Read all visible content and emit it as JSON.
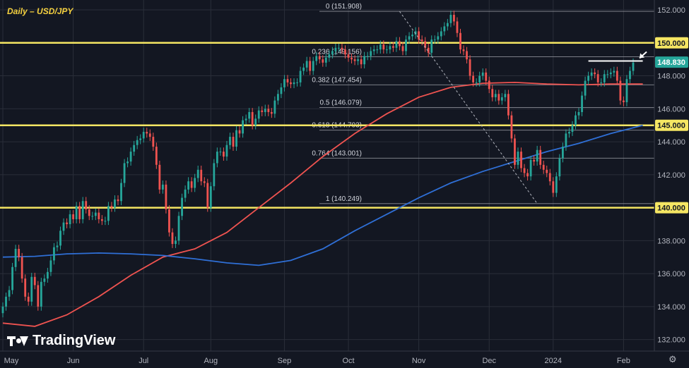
{
  "title": "Daily – USD/JPY",
  "brand": {
    "name": "TradingView",
    "icon": "tradingview-logo-icon"
  },
  "settings_icon": "gear-icon",
  "chart_data": {
    "type": "candlestick",
    "symbol": "USD/JPY",
    "timeframe": "Daily",
    "ylim": [
      131.3,
      152.6
    ],
    "y_axis": {
      "ticks": [
        {
          "value": 132,
          "label": "132.000"
        },
        {
          "value": 134,
          "label": "134.000"
        },
        {
          "value": 136,
          "label": "136.000"
        },
        {
          "value": 138,
          "label": "138.000"
        },
        {
          "value": 140,
          "label": "140.000"
        },
        {
          "value": 142,
          "label": "142.000"
        },
        {
          "value": 144,
          "label": "144.000"
        },
        {
          "value": 146,
          "label": "146.000"
        },
        {
          "value": 148,
          "label": "148.000"
        },
        {
          "value": 150,
          "label": "150.000"
        },
        {
          "value": 152,
          "label": "152.000"
        }
      ],
      "badges": [
        {
          "value": 150.0,
          "label": "150.000",
          "bg": "#f5e663",
          "fg": "#131722"
        },
        {
          "value": 148.83,
          "label": "148.830",
          "bg": "#26a69a",
          "fg": "#ffffff"
        },
        {
          "value": 145.0,
          "label": "145.000",
          "bg": "#f5e663",
          "fg": "#131722"
        },
        {
          "value": 140.0,
          "label": "140.000",
          "bg": "#f5e663",
          "fg": "#131722"
        }
      ]
    },
    "x_axis": {
      "ticks": [
        {
          "index": 0,
          "label": "May"
        },
        {
          "index": 22,
          "label": "Jun"
        },
        {
          "index": 44,
          "label": "Jul"
        },
        {
          "index": 65,
          "label": "Aug"
        },
        {
          "index": 88,
          "label": "Sep"
        },
        {
          "index": 108,
          "label": "Oct"
        },
        {
          "index": 130,
          "label": "Nov"
        },
        {
          "index": 152,
          "label": "Dec"
        },
        {
          "index": 172,
          "label": "2024"
        },
        {
          "index": 194,
          "label": "Feb"
        }
      ]
    },
    "horizontal_levels": [
      150.0,
      145.0,
      140.0
    ],
    "fibonacci": [
      {
        "ratio": "0",
        "value": 151.908,
        "label": "0 (151.908)"
      },
      {
        "ratio": "0.236",
        "value": 149.156,
        "label": "0.236 (149.156)"
      },
      {
        "ratio": "0.382",
        "value": 147.454,
        "label": "0.382 (147.454)"
      },
      {
        "ratio": "0.5",
        "value": 146.079,
        "label": "0.5 (146.079)"
      },
      {
        "ratio": "0.618",
        "value": 144.703,
        "label": "0.618 (144.703)"
      },
      {
        "ratio": "0.764",
        "value": 143.001,
        "label": "0.764 (143.001)"
      },
      {
        "ratio": "1",
        "value": 140.249,
        "label": "1 (140.249)"
      }
    ],
    "resistance_line": {
      "value": 148.9,
      "from_index": 183,
      "to_index": 200
    },
    "closes": [
      134.0,
      134.6,
      135.0,
      136.4,
      137.5,
      137.0,
      135.7,
      134.6,
      134.3,
      135.8,
      135.3,
      134.0,
      135.5,
      135.7,
      136.1,
      136.8,
      137.6,
      137.7,
      138.6,
      139.1,
      139.0,
      139.6,
      139.3,
      140.1,
      139.3,
      140.4,
      139.9,
      139.5,
      139.5,
      139.7,
      139.3,
      139.2,
      139.2,
      140.1,
      140.0,
      140.5,
      140.4,
      141.5,
      142.7,
      142.8,
      143.4,
      143.8,
      144.1,
      144.2,
      144.6,
      144.5,
      144.3,
      143.7,
      142.6,
      141.1,
      141.4,
      139.9,
      138.5,
      137.8,
      138.0,
      139.5,
      140.6,
      141.1,
      141.6,
      141.2,
      141.8,
      142.3,
      141.6,
      141.5,
      140.0,
      141.3,
      142.7,
      143.4,
      143.4,
      143.1,
      143.8,
      144.3,
      143.7,
      144.7,
      144.5,
      145.3,
      145.4,
      145.8,
      145.0,
      145.4,
      145.9,
      145.8,
      146.0,
      145.8,
      145.7,
      146.5,
      146.9,
      147.3,
      147.8,
      147.6,
      147.5,
      147.6,
      147.6,
      148.3,
      148.5,
      148.9,
      148.3,
      148.9,
      149.2,
      149.0,
      148.8,
      149.1,
      149.3,
      149.5,
      149.7,
      149.7,
      149.6,
      149.3,
      149.1,
      149.0,
      148.9,
      149.0,
      148.7,
      149.2,
      149.2,
      149.5,
      149.6,
      149.6,
      149.9,
      149.6,
      149.6,
      149.8,
      149.7,
      150.1,
      149.8,
      149.5,
      150.2,
      150.4,
      150.5,
      150.7,
      150.2,
      150.1,
      149.7,
      149.4,
      150.2,
      150.2,
      150.4,
      150.7,
      151.0,
      151.2,
      151.7,
      151.3,
      150.6,
      149.6,
      149.5,
      149.0,
      148.0,
      147.6,
      147.6,
      148.0,
      148.2,
      147.7,
      147.2,
      146.7,
      146.9,
      146.5,
      146.7,
      146.9,
      145.6,
      144.2,
      142.6,
      143.4,
      142.4,
      142.1,
      141.9,
      142.9,
      142.8,
      143.5,
      142.6,
      142.3,
      142.1,
      141.6,
      140.9,
      141.9,
      143.0,
      143.7,
      144.5,
      144.6,
      145.0,
      145.6,
      145.8,
      146.8,
      147.7,
      148.0,
      148.2,
      148.1,
      147.6,
      147.6,
      148.1,
      148.1,
      148.2,
      148.3,
      147.7,
      146.5,
      146.4,
      147.8,
      148.3,
      148.8
    ],
    "series": [
      {
        "name": "",
        "type": "moving_average",
        "color": "#ef5350",
        "points": [
          [
            0,
            133.0
          ],
          [
            10,
            132.8
          ],
          [
            20,
            133.5
          ],
          [
            30,
            134.6
          ],
          [
            40,
            135.9
          ],
          [
            50,
            137.0
          ],
          [
            60,
            137.5
          ],
          [
            70,
            138.5
          ],
          [
            80,
            140.0
          ],
          [
            90,
            141.5
          ],
          [
            100,
            143.1
          ],
          [
            110,
            144.5
          ],
          [
            120,
            145.7
          ],
          [
            130,
            146.7
          ],
          [
            140,
            147.3
          ],
          [
            150,
            147.55
          ],
          [
            160,
            147.6
          ],
          [
            170,
            147.5
          ],
          [
            180,
            147.45
          ],
          [
            190,
            147.5
          ],
          [
            200,
            147.5
          ]
        ]
      },
      {
        "name": "",
        "type": "moving_average",
        "color": "#2f6fd6",
        "points": [
          [
            0,
            137.0
          ],
          [
            10,
            137.05
          ],
          [
            20,
            137.2
          ],
          [
            30,
            137.25
          ],
          [
            40,
            137.2
          ],
          [
            50,
            137.1
          ],
          [
            60,
            136.9
          ],
          [
            70,
            136.65
          ],
          [
            80,
            136.5
          ],
          [
            90,
            136.8
          ],
          [
            100,
            137.5
          ],
          [
            110,
            138.6
          ],
          [
            120,
            139.6
          ],
          [
            130,
            140.6
          ],
          [
            140,
            141.5
          ],
          [
            150,
            142.2
          ],
          [
            160,
            142.8
          ],
          [
            170,
            143.4
          ],
          [
            180,
            143.9
          ],
          [
            190,
            144.5
          ],
          [
            200,
            145.0
          ]
        ]
      }
    ],
    "annotations": {
      "trend_line": {
        "from": [
          124,
          151.908
        ],
        "to": [
          167,
          140.249
        ],
        "style": "dashed"
      },
      "arrow": {
        "at_index": 199,
        "value": 148.9,
        "direction": "down-left"
      }
    },
    "grid": true,
    "colors": {
      "up": "#26a69a",
      "down": "#ef5350",
      "background": "#131722",
      "grid": "#2a2e39",
      "levels": "#f5e663"
    }
  }
}
